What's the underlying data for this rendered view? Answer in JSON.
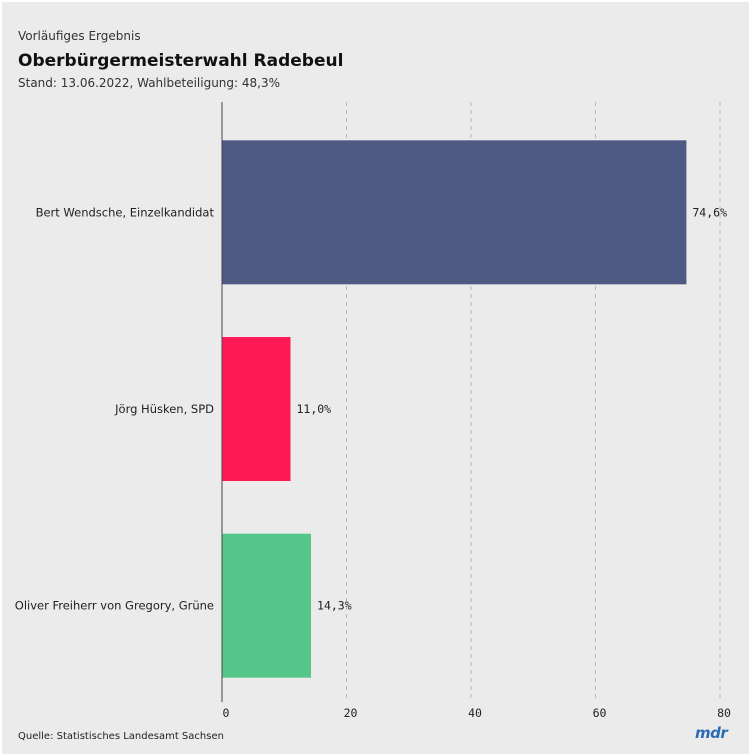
{
  "header": {
    "kicker": "Vorläufiges Ergebnis",
    "title": "Oberbürgermeisterwahl Radebeul",
    "subtitle": "Stand: 13.06.2022, Wahlbeteiligung: 48,3%"
  },
  "footer": {
    "source": "Quelle: Statistisches Landesamt Sachsen",
    "logo": "mdr"
  },
  "colors": {
    "background": "#ebebeb",
    "grid": "#b9b9b9",
    "axis": "#444444"
  },
  "chart_data": {
    "type": "bar",
    "orientation": "horizontal",
    "categories": [
      "Bert Wendsche, Einzelkandidat",
      "Jörg Hüsken, SPD",
      "Oliver Freiherr von Gregory, Grüne"
    ],
    "values": [
      74.6,
      11.0,
      14.3
    ],
    "value_labels": [
      "74,6%",
      "11,0%",
      "14,3%"
    ],
    "bar_colors": [
      "#4e5984",
      "#ff1a57",
      "#57c68a"
    ],
    "xlim": [
      0,
      80
    ],
    "xticks": [
      0,
      20,
      40,
      60,
      80
    ],
    "grid": true,
    "legend": false
  }
}
